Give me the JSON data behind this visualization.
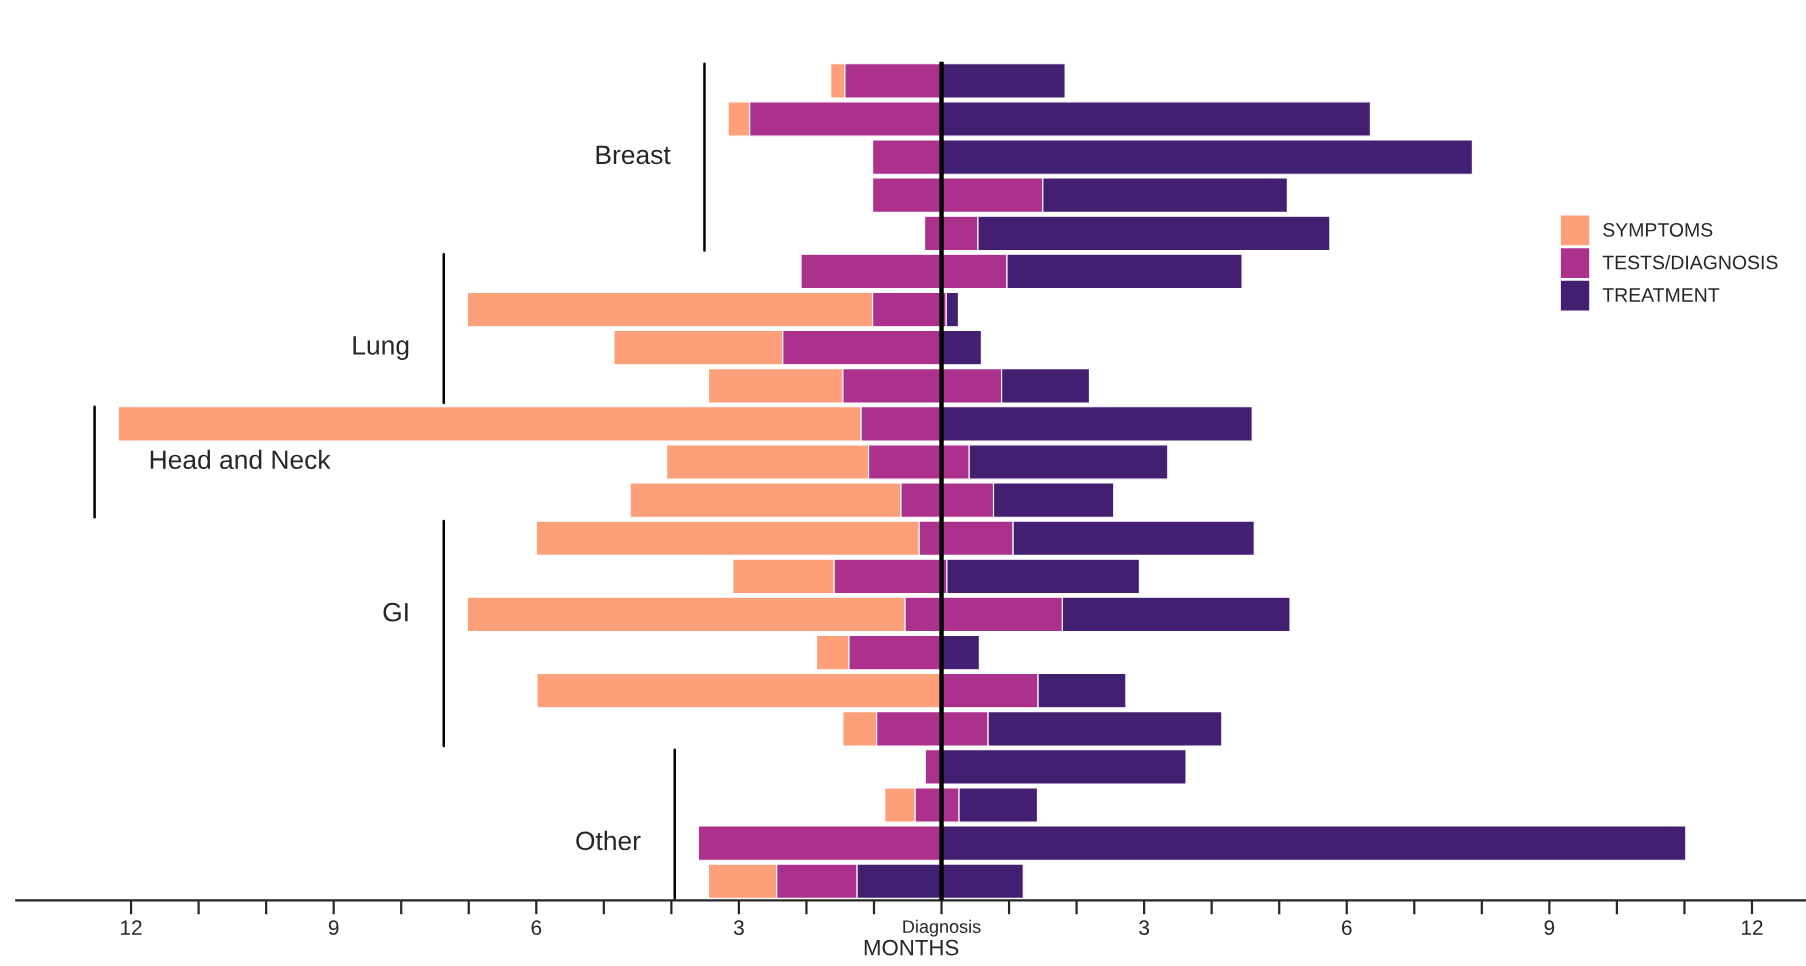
{
  "chart_data": {
    "type": "bar",
    "orientation": "horizontal",
    "xlabel": "MONTHS",
    "categories": [
      null,
      null,
      "Breast",
      null,
      null,
      null,
      null,
      "Lung",
      null,
      null,
      "Head and Neck",
      null,
      null,
      null,
      "GI",
      null,
      null,
      null,
      null,
      null,
      "Other",
      null
    ],
    "series": [
      {
        "name": "SYMPTOMS",
        "color": "#fda07a",
        "base": [
          -1.64,
          -3.16,
          null,
          null,
          null,
          null,
          -7.02,
          -4.85,
          -3.45,
          -12.19,
          -4.07,
          -4.61,
          -6.0,
          -3.09,
          -7.02,
          -1.85,
          -5.99,
          -1.46,
          null,
          -0.84,
          null,
          -3.45
        ],
        "values": [
          0.21,
          0.32,
          null,
          null,
          null,
          null,
          6.0,
          2.5,
          1.99,
          11.0,
          2.99,
          4.01,
          5.67,
          1.5,
          6.48,
          0.48,
          5.99,
          0.5,
          null,
          0.45,
          null,
          1.01
        ]
      },
      {
        "name": "TESTS/DIAGNOSIS",
        "color": "#ac318d",
        "base": [
          -1.43,
          -2.84,
          -1.02,
          -1.02,
          -0.25,
          -2.08,
          -1.02,
          -2.35,
          -1.46,
          -1.19,
          -1.08,
          -0.6,
          -0.33,
          -1.59,
          -0.54,
          -1.37,
          0,
          -0.96,
          -0.24,
          -0.39,
          -3.6,
          -2.44
        ],
        "values": [
          1.43,
          2.84,
          1.02,
          2.52,
          0.79,
          3.05,
          1.09,
          2.35,
          2.35,
          1.19,
          1.49,
          1.37,
          1.39,
          1.67,
          2.33,
          1.37,
          1.43,
          1.65,
          0.24,
          0.65,
          3.6,
          1.19
        ]
      },
      {
        "name": "TREATMENT",
        "color": "#421f70",
        "base": [
          0,
          0,
          0,
          1.5,
          0.54,
          0.97,
          0.07,
          0,
          0.89,
          0,
          0.41,
          0.77,
          1.06,
          0.08,
          1.79,
          0,
          1.43,
          0.69,
          0,
          0.26,
          0,
          -1.25
        ],
        "values": [
          1.83,
          6.35,
          7.86,
          3.62,
          5.21,
          3.48,
          0.18,
          0.59,
          1.3,
          4.6,
          2.94,
          1.78,
          3.57,
          2.85,
          3.37,
          0.56,
          1.3,
          3.46,
          3.62,
          1.16,
          11.02,
          2.46
        ]
      }
    ],
    "xlim": [
      -13.7,
      12.8
    ],
    "xticks": [
      {
        "value": -12,
        "label": "12"
      },
      {
        "value": -11,
        "label": null
      },
      {
        "value": -10,
        "label": null
      },
      {
        "value": -9,
        "label": "9"
      },
      {
        "value": -8,
        "label": null
      },
      {
        "value": -7,
        "label": null
      },
      {
        "value": -6,
        "label": "6"
      },
      {
        "value": -5,
        "label": null
      },
      {
        "value": -4,
        "label": null
      },
      {
        "value": -3,
        "label": "3"
      },
      {
        "value": -2,
        "label": null
      },
      {
        "value": -1,
        "label": null
      },
      {
        "value": 0,
        "label": "Diagnosis"
      },
      {
        "value": 1,
        "label": null
      },
      {
        "value": 2,
        "label": null
      },
      {
        "value": 3,
        "label": "3"
      },
      {
        "value": 4,
        "label": null
      },
      {
        "value": 5,
        "label": null
      },
      {
        "value": 6,
        "label": "6"
      },
      {
        "value": 7,
        "label": null
      },
      {
        "value": 8,
        "label": null
      },
      {
        "value": 9,
        "label": "9"
      },
      {
        "value": 10,
        "label": null
      },
      {
        "value": 11,
        "label": null
      },
      {
        "value": 12,
        "label": "12"
      }
    ],
    "ref_lines": [
      {
        "axis": "x",
        "value": 0,
        "color": "#000000"
      }
    ],
    "tick_labels": "x",
    "grid": false,
    "legend": "right"
  }
}
